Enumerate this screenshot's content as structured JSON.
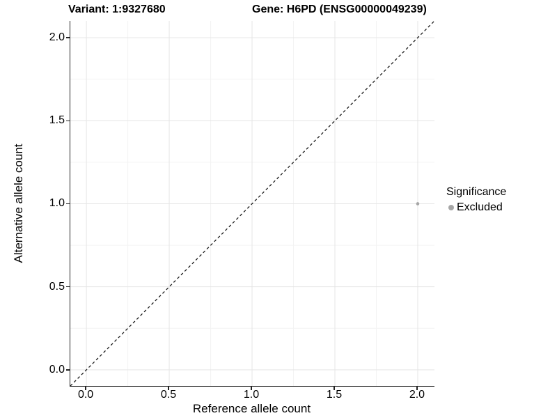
{
  "titles": {
    "left": "Variant: 1:9327680",
    "right": "Gene: H6PD (ENSG00000049239)"
  },
  "chart_data": {
    "type": "scatter",
    "titles": [
      "Variant: 1:9327680",
      "Gene: H6PD (ENSG00000049239)"
    ],
    "xlabel": "Reference allele count",
    "ylabel": "Alternative allele count",
    "xlim": [
      -0.097,
      2.101
    ],
    "ylim": [
      -0.097,
      2.101
    ],
    "x_ticks": {
      "values": [
        0,
        0.5,
        1,
        1.5,
        2
      ],
      "labels": [
        "0.0",
        "0.5",
        "1.0",
        "1.5",
        "2.0"
      ]
    },
    "y_ticks": {
      "values": [
        0,
        0.5,
        1,
        1.5,
        2
      ],
      "labels": [
        "0.0",
        "0.5",
        "1.0",
        "1.5",
        "2.0"
      ]
    },
    "x_minor_ticks": [
      0.25,
      0.75,
      1.25,
      1.75
    ],
    "y_minor_ticks": [
      0.25,
      0.75,
      1.25,
      1.75
    ],
    "series": [
      {
        "name": "Excluded",
        "color": "#A6A6A6",
        "point_radius": 2.3,
        "points": [
          [
            2.0,
            1.0
          ]
        ]
      }
    ],
    "identity_line": {
      "slope": 1,
      "intercept": 0,
      "style": "dashed",
      "color": "#1A1A1A",
      "dash": "4 3.5",
      "width": 1.3
    },
    "legend": {
      "title": "Significance",
      "position": "right",
      "entries": [
        {
          "label": "Excluded",
          "color": "#A6A6A6"
        }
      ]
    },
    "grid": {
      "major_color": "#E5E5E5",
      "minor_color": "#F3F3F3",
      "line_width": 1
    },
    "axis_color": "#222222"
  }
}
